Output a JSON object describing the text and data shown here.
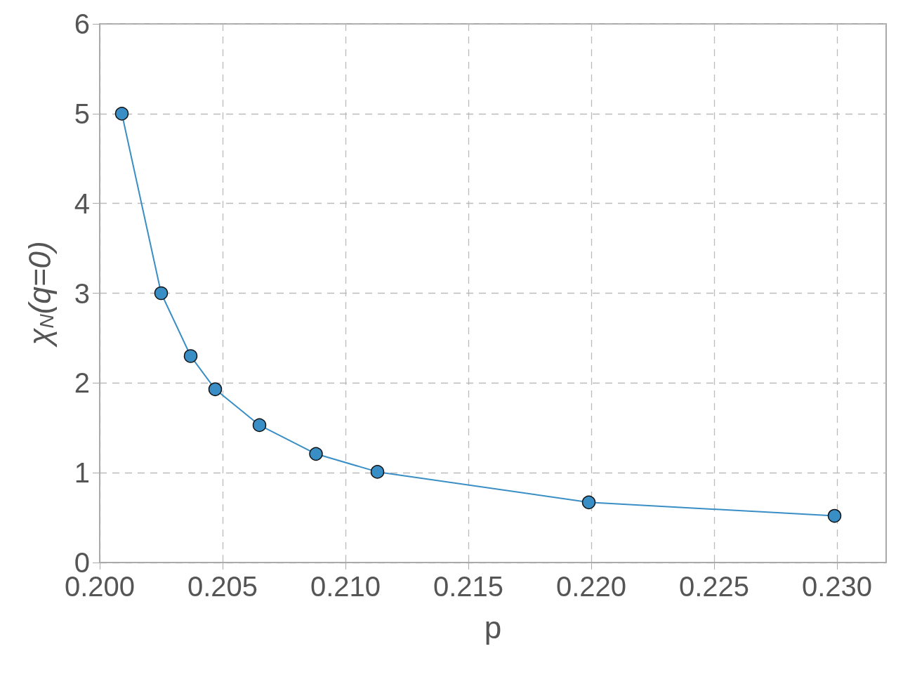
{
  "chart_data": {
    "type": "line",
    "xlabel": "p",
    "ylabel": "χ$_{N}$(q=0)",
    "x": [
      0.2009,
      0.2025,
      0.2037,
      0.2047,
      0.2065,
      0.2088,
      0.2113,
      0.2199,
      0.2299
    ],
    "series": [
      {
        "color": "#3a8ec6",
        "values": [
          5.0,
          3.0,
          2.3,
          1.93,
          1.53,
          1.21,
          1.01,
          0.67,
          0.52
        ]
      }
    ],
    "xlim": [
      0.2,
      0.232
    ],
    "xticks": [
      {
        "value": 0.2,
        "label": "0.200"
      },
      {
        "value": 0.205,
        "label": "0.205"
      },
      {
        "value": 0.21,
        "label": "0.210"
      },
      {
        "value": 0.215,
        "label": "0.215"
      },
      {
        "value": 0.22,
        "label": "0.220"
      },
      {
        "value": 0.225,
        "label": "0.225"
      },
      {
        "value": 0.23,
        "label": "0.230"
      }
    ],
    "ylim": [
      0,
      6
    ],
    "yticks": [
      0,
      1,
      2,
      3,
      4,
      5,
      6
    ],
    "grid": true,
    "marker": "circle",
    "line_style": "solid"
  }
}
